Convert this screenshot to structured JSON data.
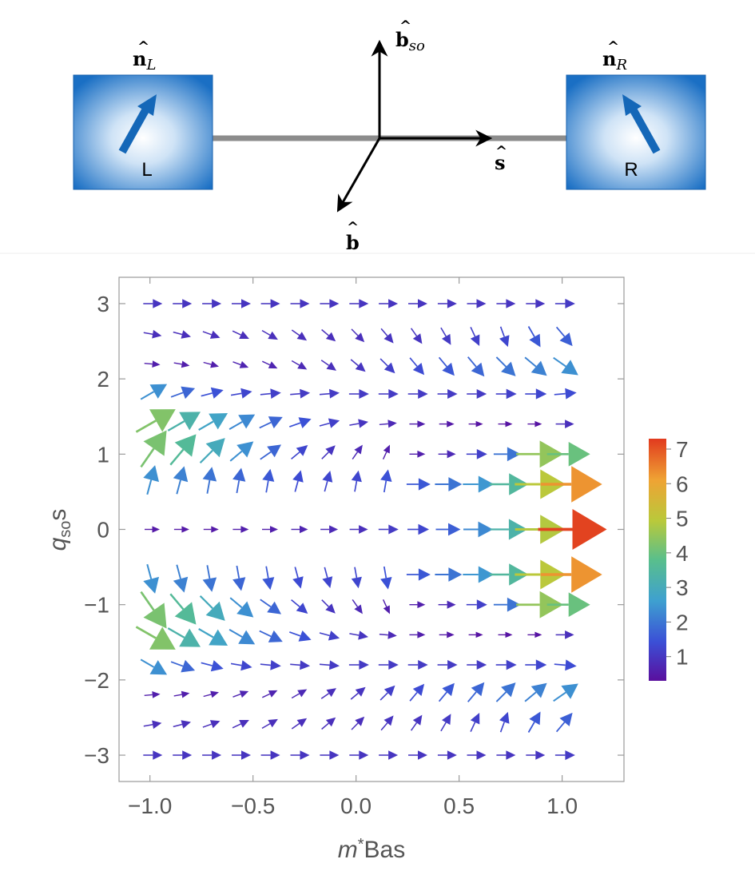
{
  "schematic": {
    "left_box_label": "L",
    "right_box_label": "R",
    "n_left": {
      "base": "n",
      "sub": "L"
    },
    "n_right": {
      "base": "n",
      "sub": "R"
    },
    "b_so": {
      "base": "b",
      "sub": "so"
    },
    "s_hat": "s",
    "b_hat": "b",
    "colors": {
      "box_edge": "#1a6fc4",
      "box_center": "#ffffff",
      "arrow": "#1467b8",
      "wire": "#8c8c8c",
      "axis": "#000000"
    },
    "icons": [
      "left-magnet-arrow-icon",
      "right-magnet-arrow-icon"
    ]
  },
  "chart_data": {
    "type": "vector_field",
    "xlabel": "m*Bas",
    "ylabel": "qsos",
    "xlim": [
      -1.15,
      1.3
    ],
    "ylim": [
      -3.35,
      3.35
    ],
    "x_ticks": [
      "−1.0",
      "−0.5",
      "0.0",
      "0.5",
      "1.0"
    ],
    "x_tick_values": [
      -1.0,
      -0.5,
      0.0,
      0.5,
      1.0
    ],
    "y_ticks": [
      "3",
      "2",
      "1",
      "0",
      "−1",
      "−2",
      "−3"
    ],
    "y_tick_values": [
      3,
      2,
      1,
      0,
      -1,
      -2,
      -3
    ],
    "grid": false,
    "colorbar": {
      "ticks": [
        "7",
        "6",
        "5",
        "4",
        "3",
        "2",
        "1"
      ],
      "tick_values": [
        7,
        6,
        5,
        4,
        3,
        2,
        1
      ],
      "range": [
        0.3,
        7.3
      ],
      "colors": [
        "#5a0f9e",
        "#3b4fd6",
        "#3ea0d0",
        "#59bf8c",
        "#b9c93b",
        "#efa334",
        "#e13a1e"
      ]
    },
    "grid_x": [
      -1.0,
      -0.857,
      -0.714,
      -0.571,
      -0.429,
      -0.286,
      -0.143,
      0.0,
      0.143,
      0.286,
      0.429,
      0.571,
      0.714,
      0.857,
      1.0
    ],
    "grid_y": [
      3.0,
      2.6,
      2.2,
      1.8,
      1.4,
      1.0,
      0.6,
      0.0,
      -0.6,
      -1.0,
      -1.4,
      -1.8,
      -2.2,
      -2.6,
      -3.0
    ],
    "rows": [
      {
        "y": 3.0,
        "angles": [
          0,
          0,
          0,
          0,
          0,
          0,
          0,
          0,
          0,
          0,
          0,
          0,
          0,
          0,
          0
        ],
        "mags": [
          1.0,
          1.0,
          1.0,
          1.0,
          1.0,
          1.0,
          1.0,
          1.0,
          1.0,
          1.0,
          1.0,
          1.0,
          1.0,
          1.0,
          1.1
        ]
      },
      {
        "y": 2.6,
        "angles": [
          -10,
          -15,
          -20,
          -25,
          -30,
          -35,
          -40,
          -45,
          -50,
          -55,
          -60,
          -65,
          -70,
          -60,
          -50
        ],
        "mags": [
          0.9,
          0.9,
          0.9,
          0.9,
          0.9,
          0.9,
          0.9,
          0.9,
          1.0,
          1.0,
          1.1,
          1.2,
          1.3,
          1.6,
          1.7
        ]
      },
      {
        "y": 2.2,
        "angles": [
          -5,
          -10,
          -15,
          -20,
          -25,
          -30,
          -35,
          -40,
          -45,
          -50,
          -50,
          -50,
          -45,
          -40,
          -35
        ],
        "mags": [
          0.6,
          0.6,
          0.6,
          0.7,
          0.7,
          0.8,
          0.9,
          1.0,
          1.2,
          1.4,
          1.6,
          1.8,
          2.0,
          2.2,
          2.4
        ]
      },
      {
        "y": 1.8,
        "angles": [
          30,
          20,
          15,
          10,
          5,
          5,
          5,
          0,
          0,
          0,
          0,
          0,
          0,
          0,
          5
        ],
        "mags": [
          2.4,
          1.8,
          1.5,
          1.3,
          1.2,
          1.1,
          1.1,
          1.1,
          1.1,
          1.1,
          1.1,
          1.1,
          1.2,
          1.3,
          1.4
        ]
      },
      {
        "y": 1.4,
        "angles": [
          30,
          30,
          30,
          30,
          25,
          20,
          15,
          10,
          5,
          0,
          0,
          0,
          0,
          0,
          0
        ],
        "mags": [
          4.3,
          3.3,
          2.8,
          2.3,
          1.8,
          1.5,
          1.2,
          1.0,
          0.8,
          0.6,
          0.5,
          0.4,
          0.4,
          0.4,
          0.9
        ]
      },
      {
        "y": 1.0,
        "angles": [
          55,
          50,
          45,
          40,
          35,
          40,
          45,
          55,
          65,
          0,
          0,
          0,
          0,
          0,
          0
        ],
        "mags": [
          4.2,
          3.6,
          3.0,
          2.4,
          1.8,
          1.3,
          1.0,
          0.8,
          0.6,
          0.6,
          0.8,
          1.2,
          2.0,
          4.5,
          4.0
        ]
      },
      {
        "y": 0.6,
        "angles": [
          75,
          75,
          80,
          80,
          80,
          75,
          75,
          80,
          80,
          0,
          0,
          0,
          0,
          0,
          0
        ],
        "mags": [
          2.4,
          2.2,
          2.0,
          1.8,
          1.6,
          1.4,
          1.3,
          1.3,
          1.5,
          1.6,
          2.0,
          2.5,
          3.5,
          5.0,
          6.3
        ]
      },
      {
        "y": 0.0,
        "angles": [
          0,
          0,
          0,
          0,
          0,
          0,
          0,
          0,
          0,
          0,
          0,
          0,
          0,
          0,
          0
        ],
        "mags": [
          0.5,
          0.5,
          0.5,
          0.6,
          0.6,
          0.7,
          0.8,
          0.9,
          1.1,
          1.3,
          1.7,
          2.3,
          3.3,
          4.9,
          7.2
        ]
      },
      {
        "y": -0.6,
        "angles": [
          -75,
          -75,
          -80,
          -80,
          -80,
          -75,
          -75,
          -80,
          -80,
          0,
          0,
          0,
          0,
          0,
          0
        ],
        "mags": [
          2.4,
          2.2,
          2.0,
          1.8,
          1.6,
          1.4,
          1.3,
          1.3,
          1.5,
          1.6,
          2.0,
          2.5,
          3.5,
          5.0,
          6.3
        ]
      },
      {
        "y": -1.0,
        "angles": [
          -55,
          -50,
          -45,
          -40,
          -35,
          -40,
          -45,
          -55,
          -65,
          0,
          0,
          0,
          0,
          0,
          0
        ],
        "mags": [
          4.2,
          3.6,
          3.0,
          2.4,
          1.8,
          1.3,
          1.0,
          0.8,
          0.6,
          0.6,
          0.8,
          1.2,
          2.0,
          4.5,
          4.0
        ]
      },
      {
        "y": -1.4,
        "angles": [
          -30,
          -30,
          -30,
          -30,
          -25,
          -20,
          -15,
          -10,
          -5,
          0,
          0,
          0,
          0,
          0,
          0
        ],
        "mags": [
          4.3,
          3.3,
          2.8,
          2.3,
          1.8,
          1.5,
          1.2,
          1.0,
          0.8,
          0.6,
          0.5,
          0.4,
          0.4,
          0.4,
          0.9
        ]
      },
      {
        "y": -1.8,
        "angles": [
          -30,
          -20,
          -15,
          -10,
          -5,
          -5,
          -5,
          0,
          0,
          0,
          0,
          0,
          0,
          0,
          -5
        ],
        "mags": [
          2.4,
          1.8,
          1.5,
          1.3,
          1.2,
          1.1,
          1.1,
          1.1,
          1.1,
          1.1,
          1.1,
          1.1,
          1.2,
          1.3,
          1.4
        ]
      },
      {
        "y": -2.2,
        "angles": [
          5,
          10,
          15,
          20,
          25,
          30,
          35,
          40,
          45,
          50,
          50,
          50,
          45,
          40,
          35
        ],
        "mags": [
          0.6,
          0.6,
          0.6,
          0.7,
          0.7,
          0.8,
          0.9,
          1.0,
          1.2,
          1.4,
          1.6,
          1.8,
          2.0,
          2.2,
          2.4
        ]
      },
      {
        "y": -2.6,
        "angles": [
          10,
          15,
          20,
          25,
          30,
          35,
          40,
          45,
          50,
          55,
          60,
          65,
          70,
          60,
          50
        ],
        "mags": [
          0.9,
          0.9,
          0.9,
          0.9,
          0.9,
          0.9,
          0.9,
          0.9,
          1.0,
          1.0,
          1.1,
          1.2,
          1.3,
          1.6,
          1.7
        ]
      },
      {
        "y": -3.0,
        "angles": [
          0,
          0,
          0,
          0,
          0,
          0,
          0,
          0,
          0,
          0,
          0,
          0,
          0,
          0,
          0
        ],
        "mags": [
          1.0,
          1.0,
          1.0,
          1.0,
          1.0,
          1.0,
          1.0,
          1.0,
          1.0,
          1.0,
          1.0,
          1.0,
          1.0,
          1.0,
          1.1
        ]
      }
    ]
  }
}
